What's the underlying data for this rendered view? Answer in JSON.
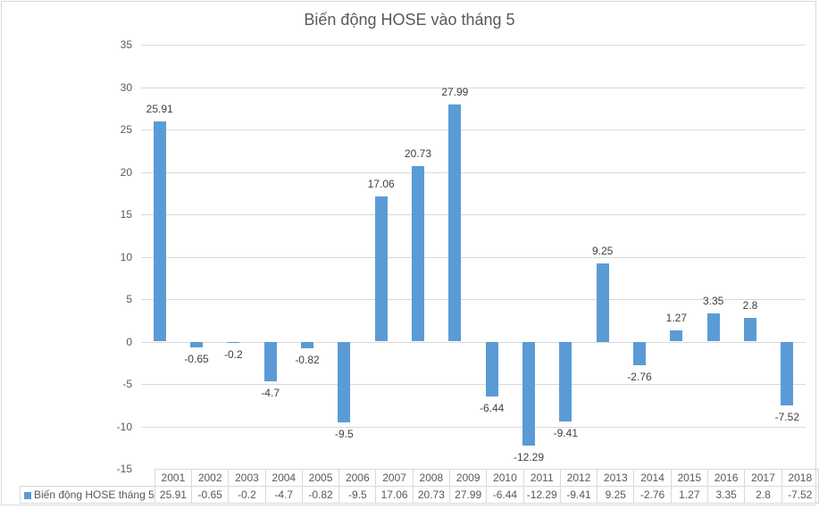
{
  "chart_data": {
    "type": "bar",
    "title": "Biến động HOSE vào tháng 5",
    "xlabel": "",
    "ylabel": "",
    "ylim": [
      -15,
      35
    ],
    "yticks": [
      35,
      30,
      25,
      20,
      15,
      10,
      5,
      0,
      -5,
      -10,
      -15
    ],
    "grid": true,
    "legend_position": "data-table",
    "categories": [
      "2001",
      "2002",
      "2003",
      "2004",
      "2005",
      "2006",
      "2007",
      "2008",
      "2009",
      "2010",
      "2011",
      "2012",
      "2013",
      "2014",
      "2015",
      "2016",
      "2017",
      "2018"
    ],
    "series": [
      {
        "name": "Biến động HOSE tháng 5",
        "color": "#5b9bd5",
        "values": [
          25.91,
          -0.65,
          -0.2,
          -4.7,
          -0.82,
          -9.5,
          17.06,
          20.73,
          27.99,
          -6.44,
          -12.29,
          -9.41,
          9.25,
          -2.76,
          1.27,
          3.35,
          2.8,
          -7.52
        ]
      }
    ],
    "data_labels": [
      "25.91",
      "-0.65",
      "-0.2",
      "-4.7",
      "-0.82",
      "-9.5",
      "17.06",
      "20.73",
      "27.99",
      "-6.44",
      "-12.29",
      "-9.41",
      "9.25",
      "-2.76",
      "1.27",
      "3.35",
      "2.8",
      "-7.52"
    ]
  }
}
